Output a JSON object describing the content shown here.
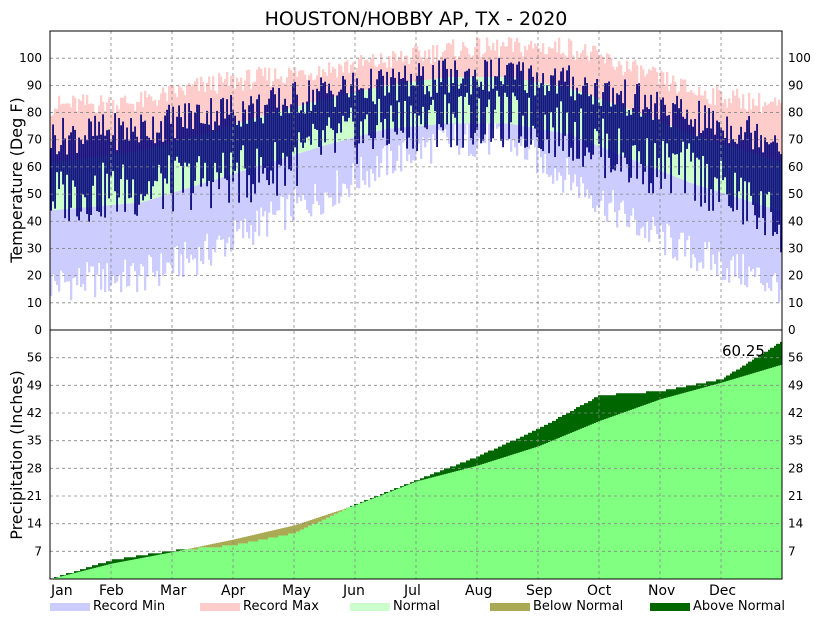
{
  "chart_data": [
    {
      "type": "bar",
      "panel": "temperature",
      "title": "HOUSTON/HOBBY AP, TX - 2020",
      "ylabel": "Temperature (Deg F)",
      "ylim": [
        0,
        110
      ],
      "yticks": [
        0,
        10,
        20,
        30,
        40,
        50,
        60,
        70,
        80,
        90,
        100
      ],
      "grid": true,
      "months": [
        "Jan",
        "Feb",
        "Mar",
        "Apr",
        "May",
        "Jun",
        "Jul",
        "Aug",
        "Sep",
        "Oct",
        "Nov",
        "Dec"
      ],
      "bands_monthly": {
        "record_min": [
          18,
          20,
          28,
          40,
          50,
          62,
          70,
          70,
          56,
          40,
          28,
          20
        ],
        "record_max": [
          83,
          84,
          90,
          93,
          96,
          99,
          103,
          104,
          104,
          96,
          88,
          84
        ],
        "normal_low": [
          45,
          47,
          54,
          61,
          68,
          74,
          76,
          76,
          72,
          63,
          54,
          47
        ],
        "normal_high": [
          63,
          66,
          72,
          79,
          85,
          90,
          93,
          93,
          89,
          81,
          72,
          65
        ]
      },
      "observed_monthly": {
        "low": [
          50,
          52,
          55,
          58,
          68,
          75,
          78,
          77,
          73,
          62,
          58,
          45
        ],
        "high": [
          72,
          74,
          80,
          82,
          88,
          90,
          93,
          94,
          91,
          85,
          78,
          73
        ]
      }
    },
    {
      "type": "area",
      "panel": "precipitation",
      "ylabel": "Precipitation (Inches)",
      "ylim": [
        0,
        63
      ],
      "yticks": [
        7,
        14,
        21,
        28,
        35,
        42,
        49,
        56
      ],
      "grid": true,
      "annotation": "60.25",
      "x_months": [
        0,
        1,
        2,
        3,
        4,
        5,
        6,
        7,
        8,
        9,
        10,
        11,
        12
      ],
      "normal_cumulative": [
        0,
        3.9,
        6.8,
        10.0,
        13.6,
        18.7,
        24.7,
        28.7,
        33.6,
        40.0,
        45.5,
        49.7,
        54.3
      ],
      "observed_cumulative": [
        0,
        4.8,
        7.2,
        8.5,
        11.6,
        18.9,
        25.0,
        31.0,
        38.0,
        46.5,
        47.5,
        50.5,
        60.25
      ]
    }
  ],
  "legend": [
    {
      "label": "Record Min",
      "color": "#ccccff"
    },
    {
      "label": "Record Max",
      "color": "#ffcccc"
    },
    {
      "label": "Normal",
      "color": "#ccffcc"
    },
    {
      "label": "Below Normal",
      "color": "#aaaa55"
    },
    {
      "label": "Above Normal",
      "color": "#006600"
    }
  ],
  "colors": {
    "record_min": "#ccccff",
    "record_max": "#ffcccc",
    "normal": "#ccffcc",
    "observed_temp": "#000077",
    "normal_precip": "#80ff80",
    "below_normal": "#aaaa55",
    "above_normal": "#006600",
    "grid": "#888888"
  }
}
